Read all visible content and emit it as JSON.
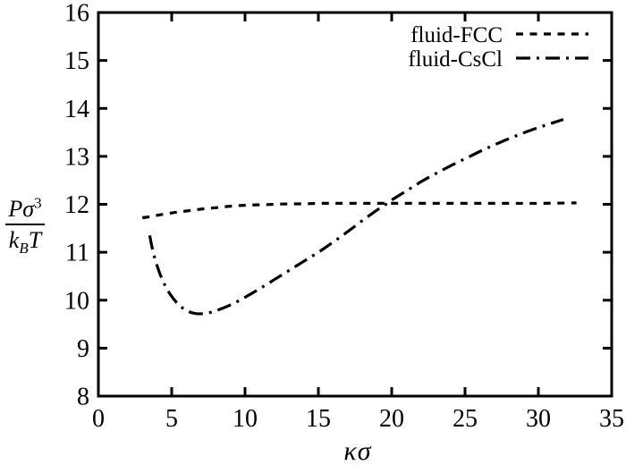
{
  "figure": {
    "background": "#ffffff",
    "line_color": "#000000"
  },
  "chart_data": {
    "type": "line",
    "title": "",
    "xlabel": "κσ",
    "ylabel_plain": "Pσ³/kBT",
    "ylabel_fraction": {
      "num_main": "Pσ",
      "num_sup": "3",
      "den_k": "k",
      "den_sub": "B",
      "den_T": "T"
    },
    "xlim": [
      0,
      35
    ],
    "ylim": [
      8,
      16
    ],
    "xticks": [
      0,
      5,
      10,
      15,
      20,
      25,
      30,
      35
    ],
    "yticks": [
      8,
      9,
      10,
      11,
      12,
      13,
      14,
      15,
      16
    ],
    "grid": false,
    "legend_position": "top-right",
    "series": [
      {
        "name": "fluid-FCC",
        "style": "dashed",
        "x": [
          3.0,
          3.5,
          4.0,
          5.0,
          6.0,
          7.0,
          8.0,
          9.0,
          10.0,
          11.0,
          12.0,
          13.0,
          14.0,
          15.0,
          16.0,
          18.0,
          20.0,
          22.0,
          24.0,
          26.0,
          28.0,
          30.0,
          32.6
        ],
        "y": [
          11.72,
          11.74,
          11.77,
          11.82,
          11.86,
          11.9,
          11.93,
          11.96,
          11.98,
          11.99,
          12.0,
          12.01,
          12.01,
          12.02,
          12.02,
          12.02,
          12.02,
          12.02,
          12.02,
          12.02,
          12.02,
          12.02,
          12.03
        ]
      },
      {
        "name": "fluid-CsCl",
        "style": "dashdot",
        "x": [
          3.5,
          3.7,
          4.0,
          4.4,
          4.9,
          5.5,
          6.1,
          6.7,
          7.4,
          8.1,
          9.0,
          10.0,
          11.0,
          12.0,
          13.0,
          14.0,
          15.0,
          16.0,
          17.0,
          18.0,
          19.0,
          19.6,
          20.0,
          21.0,
          22.0,
          23.0,
          24.0,
          25.0,
          26.0,
          27.0,
          28.0,
          29.0,
          30.0,
          31.0,
          31.7
        ],
        "y": [
          11.35,
          11.05,
          10.72,
          10.4,
          10.12,
          9.9,
          9.77,
          9.72,
          9.73,
          9.79,
          9.9,
          10.06,
          10.24,
          10.43,
          10.62,
          10.81,
          11.0,
          11.21,
          11.43,
          11.66,
          11.88,
          12.0,
          12.09,
          12.28,
          12.47,
          12.64,
          12.8,
          12.95,
          13.1,
          13.24,
          13.37,
          13.49,
          13.6,
          13.7,
          13.77
        ]
      }
    ]
  }
}
